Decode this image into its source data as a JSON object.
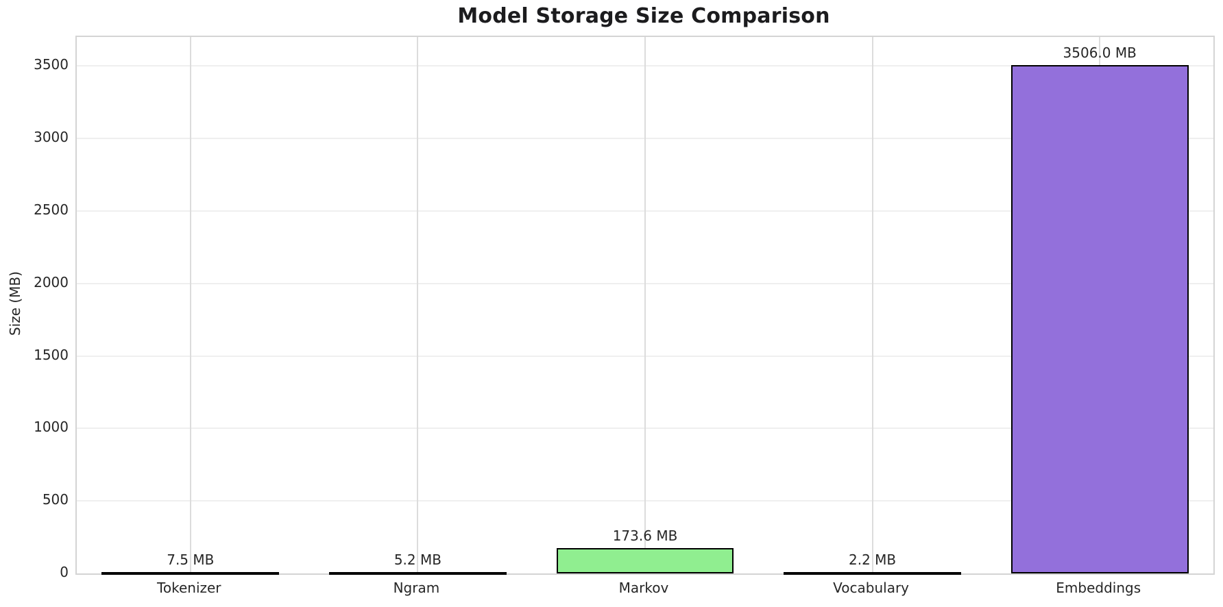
{
  "chart_data": {
    "type": "bar",
    "title": "Model Storage Size Comparison",
    "xlabel": "",
    "ylabel": "Size (MB)",
    "categories": [
      "Tokenizer",
      "Ngram",
      "Markov",
      "Vocabulary",
      "Embeddings"
    ],
    "values": [
      7.5,
      5.2,
      173.6,
      2.2,
      3506.0
    ],
    "value_labels": [
      "7.5 MB",
      "5.2 MB",
      "173.6 MB",
      "2.2 MB",
      "3506.0 MB"
    ],
    "bar_colors": [
      "#87CEEB",
      "#F08080",
      "#90EE90",
      "#FFD700",
      "#9370DB"
    ],
    "bar_edge_color": "#000000",
    "ylim": [
      0,
      3700
    ],
    "yticks": [
      0,
      500,
      1000,
      1500,
      2000,
      2500,
      3000,
      3500
    ],
    "grid": true,
    "legend": false
  },
  "style": {
    "background": "#ffffff",
    "spine_color": "#d4d4d4",
    "h_grid_color": "#efefef",
    "v_grid_color": "#dcdcdc",
    "text_color": "#262626",
    "title_color": "#1c1c1e"
  }
}
